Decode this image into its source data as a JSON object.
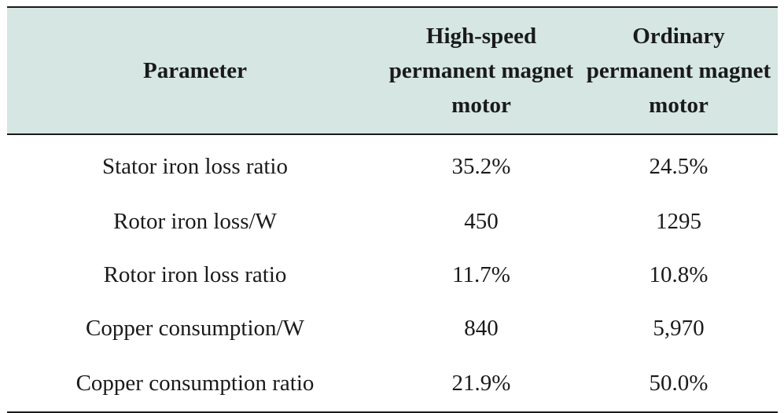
{
  "table": {
    "headers": [
      "Parameter",
      "High-speed permanent magnet motor",
      "Ordinary permanent magnet motor"
    ],
    "rows": [
      [
        "Stator iron loss ratio",
        "35.2%",
        "24.5%"
      ],
      [
        "Rotor iron loss/W",
        "450",
        "1295"
      ],
      [
        "Rotor iron loss ratio",
        "11.7%",
        "10.8%"
      ],
      [
        "Copper consumption/W",
        "840",
        "5,970"
      ],
      [
        "Copper consumption ratio",
        "21.9%",
        "50.0%"
      ]
    ]
  },
  "colors": {
    "header_background": "#d5e6e3",
    "rule": "#1a1a1a"
  }
}
